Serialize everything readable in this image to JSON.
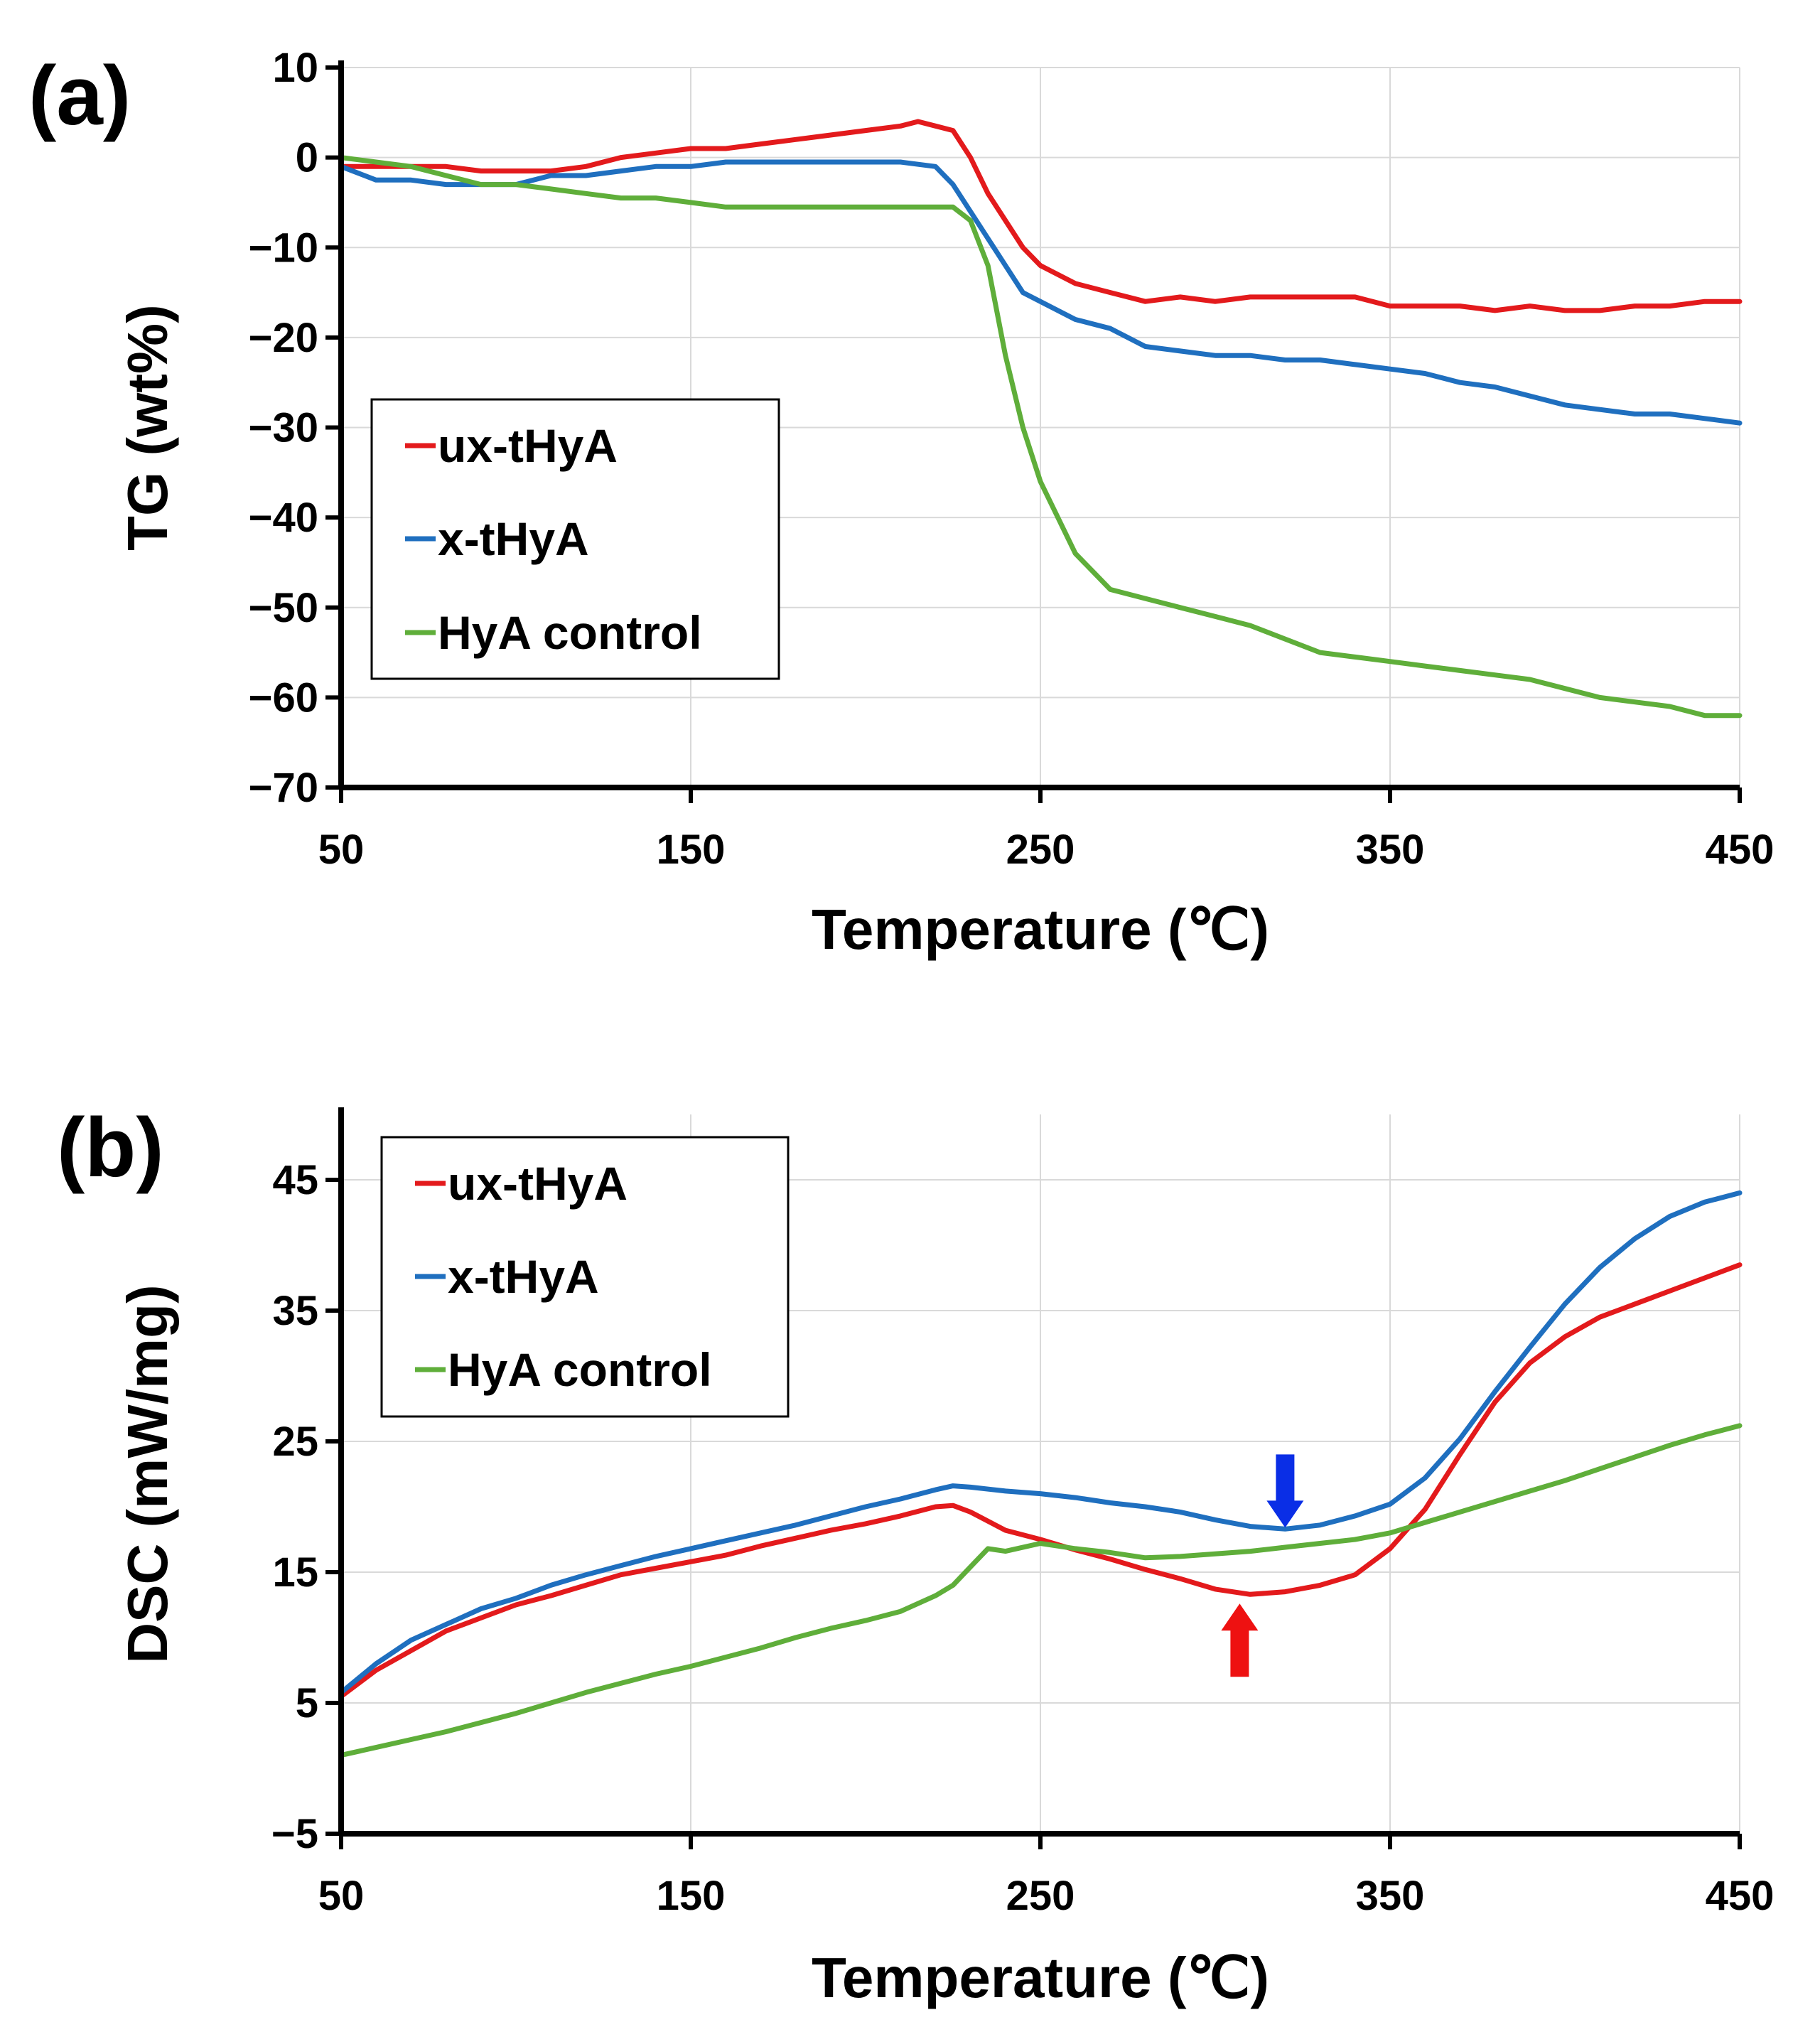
{
  "colors": {
    "ux_tHyA": "#e31a1c",
    "x_tHyA": "#1f6fbf",
    "hya_control": "#5fae3a",
    "grid": "#d9d9d9",
    "axis": "#000000",
    "arrow_blue": "#0a2ee6",
    "arrow_red": "#ee1111"
  },
  "chart_data": [
    {
      "panel_label": "(a)",
      "type": "line",
      "xlabel": "Temperature (℃)",
      "ylabel": "TG (wt%)",
      "xlim": [
        50,
        450
      ],
      "ylim": [
        -70,
        10
      ],
      "xticks": [
        50,
        150,
        250,
        350,
        450
      ],
      "yticks": [
        10,
        0,
        -10,
        -20,
        -30,
        -40,
        -50,
        -60,
        -70
      ],
      "xtick_labels": [
        "50",
        "150",
        "250",
        "350",
        "450"
      ],
      "ytick_labels": [
        "10",
        "0",
        "−10",
        "−20",
        "−30",
        "−40",
        "−50",
        "−60",
        "−70"
      ],
      "grid": true,
      "legend_position": "center-left",
      "series": [
        {
          "name": "ux-tHyA",
          "color": "#e31a1c",
          "x": [
            50,
            60,
            70,
            80,
            90,
            100,
            110,
            120,
            130,
            140,
            150,
            160,
            170,
            180,
            190,
            200,
            210,
            215,
            220,
            225,
            230,
            235,
            240,
            245,
            250,
            260,
            270,
            280,
            290,
            300,
            310,
            320,
            330,
            340,
            350,
            360,
            370,
            380,
            390,
            400,
            410,
            420,
            430,
            440,
            450
          ],
          "y": [
            -1,
            -1,
            -1,
            -1,
            -1.5,
            -1.5,
            -1.5,
            -1,
            0,
            0.5,
            1,
            1,
            1.5,
            2,
            2.5,
            3,
            3.5,
            4,
            3.5,
            3,
            0,
            -4,
            -7,
            -10,
            -12,
            -14,
            -15,
            -16,
            -15.5,
            -16,
            -15.5,
            -15.5,
            -15.5,
            -15.5,
            -16.5,
            -16.5,
            -16.5,
            -17,
            -16.5,
            -17,
            -17,
            -16.5,
            -16.5,
            -16,
            -16
          ]
        },
        {
          "name": "x-tHyA",
          "color": "#1f6fbf",
          "x": [
            50,
            60,
            70,
            80,
            90,
            100,
            110,
            120,
            130,
            140,
            150,
            160,
            170,
            180,
            190,
            200,
            210,
            220,
            225,
            230,
            235,
            240,
            245,
            250,
            260,
            270,
            280,
            290,
            300,
            310,
            320,
            330,
            340,
            350,
            360,
            370,
            380,
            390,
            400,
            410,
            420,
            430,
            440,
            450
          ],
          "y": [
            -1,
            -2.5,
            -2.5,
            -3,
            -3,
            -3,
            -2,
            -2,
            -1.5,
            -1,
            -1,
            -0.5,
            -0.5,
            -0.5,
            -0.5,
            -0.5,
            -0.5,
            -1,
            -3,
            -6,
            -9,
            -12,
            -15,
            -16,
            -18,
            -19,
            -21,
            -21.5,
            -22,
            -22,
            -22.5,
            -22.5,
            -23,
            -23.5,
            -24,
            -25,
            -25.5,
            -26.5,
            -27.5,
            -28,
            -28.5,
            -28.5,
            -29,
            -29.5
          ]
        },
        {
          "name": "HyA control",
          "color": "#5fae3a",
          "x": [
            50,
            60,
            70,
            80,
            90,
            100,
            110,
            120,
            130,
            140,
            150,
            160,
            170,
            180,
            190,
            200,
            210,
            220,
            225,
            230,
            235,
            240,
            245,
            250,
            255,
            260,
            265,
            270,
            280,
            290,
            300,
            310,
            320,
            330,
            340,
            350,
            360,
            370,
            380,
            390,
            400,
            410,
            420,
            430,
            440,
            450
          ],
          "y": [
            0,
            -0.5,
            -1,
            -2,
            -3,
            -3,
            -3.5,
            -4,
            -4.5,
            -4.5,
            -5,
            -5.5,
            -5.5,
            -5.5,
            -5.5,
            -5.5,
            -5.5,
            -5.5,
            -5.5,
            -7,
            -12,
            -22,
            -30,
            -36,
            -40,
            -44,
            -46,
            -48,
            -49,
            -50,
            -51,
            -52,
            -53.5,
            -55,
            -55.5,
            -56,
            -56.5,
            -57,
            -57.5,
            -58,
            -59,
            -60,
            -60.5,
            -61,
            -62,
            -62
          ]
        }
      ],
      "annotations": []
    },
    {
      "panel_label": "(b)",
      "type": "line",
      "xlabel": "Temperature (℃)",
      "ylabel": "DSC (mW/mg)",
      "xlim": [
        50,
        450
      ],
      "ylim": [
        -5,
        50
      ],
      "xticks": [
        50,
        150,
        250,
        350,
        450
      ],
      "yticks": [
        45,
        35,
        25,
        15,
        5,
        -5
      ],
      "xtick_labels": [
        "50",
        "150",
        "250",
        "350",
        "450"
      ],
      "ytick_labels": [
        "45",
        "35",
        "25",
        "15",
        "5",
        "−5"
      ],
      "grid": true,
      "legend_position": "top-left",
      "series": [
        {
          "name": "ux-tHyA",
          "color": "#e31a1c",
          "x": [
            50,
            60,
            70,
            80,
            90,
            100,
            110,
            120,
            130,
            140,
            150,
            160,
            170,
            180,
            190,
            200,
            210,
            220,
            225,
            230,
            240,
            250,
            260,
            270,
            280,
            290,
            300,
            310,
            320,
            330,
            340,
            350,
            360,
            370,
            380,
            390,
            400,
            410,
            420,
            430,
            440,
            450
          ],
          "y": [
            5.5,
            7.5,
            9,
            10.5,
            11.5,
            12.5,
            13.2,
            14,
            14.8,
            15.3,
            15.8,
            16.3,
            17,
            17.6,
            18.2,
            18.7,
            19.3,
            20,
            20.1,
            19.6,
            18.2,
            17.5,
            16.7,
            16,
            15.2,
            14.5,
            13.7,
            13.3,
            13.5,
            14,
            14.8,
            16.8,
            19.8,
            24,
            28,
            31,
            33,
            34.5,
            35.5,
            36.5,
            37.5,
            38.5
          ]
        },
        {
          "name": "x-tHyA",
          "color": "#1f6fbf",
          "x": [
            50,
            60,
            70,
            80,
            90,
            100,
            110,
            120,
            130,
            140,
            150,
            160,
            170,
            180,
            190,
            200,
            210,
            220,
            225,
            230,
            240,
            250,
            260,
            270,
            280,
            290,
            300,
            310,
            320,
            330,
            340,
            350,
            360,
            370,
            380,
            390,
            400,
            410,
            420,
            430,
            440,
            450
          ],
          "y": [
            5.8,
            8,
            9.8,
            11,
            12.2,
            13,
            14,
            14.8,
            15.5,
            16.2,
            16.8,
            17.4,
            18,
            18.6,
            19.3,
            20,
            20.6,
            21.3,
            21.6,
            21.5,
            21.2,
            21,
            20.7,
            20.3,
            20,
            19.6,
            19,
            18.5,
            18.3,
            18.6,
            19.3,
            20.2,
            22.2,
            25.2,
            28.8,
            32.2,
            35.5,
            38.3,
            40.5,
            42.2,
            43.3,
            44
          ]
        },
        {
          "name": "HyA control",
          "color": "#5fae3a",
          "x": [
            50,
            60,
            70,
            80,
            90,
            100,
            110,
            120,
            130,
            140,
            150,
            160,
            170,
            180,
            190,
            200,
            210,
            220,
            225,
            230,
            235,
            240,
            250,
            260,
            270,
            280,
            290,
            300,
            310,
            320,
            330,
            340,
            350,
            360,
            370,
            380,
            390,
            400,
            410,
            420,
            430,
            440,
            450
          ],
          "y": [
            1,
            1.6,
            2.2,
            2.8,
            3.5,
            4.2,
            5,
            5.8,
            6.5,
            7.2,
            7.8,
            8.5,
            9.2,
            10,
            10.7,
            11.3,
            12,
            13.2,
            14,
            15.4,
            16.8,
            16.6,
            17.2,
            16.8,
            16.5,
            16.1,
            16.2,
            16.4,
            16.6,
            16.9,
            17.2,
            17.5,
            18,
            18.8,
            19.6,
            20.4,
            21.2,
            22,
            22.9,
            23.8,
            24.7,
            25.5,
            26.2
          ]
        }
      ],
      "annotations": [
        {
          "type": "arrow",
          "direction": "down",
          "color": "#0a2ee6",
          "x": 320,
          "y_tip": 18.4,
          "y_tail": 24
        },
        {
          "type": "arrow",
          "direction": "up",
          "color": "#ee1111",
          "x": 307,
          "y_tip": 12.6,
          "y_tail": 7
        }
      ]
    }
  ]
}
